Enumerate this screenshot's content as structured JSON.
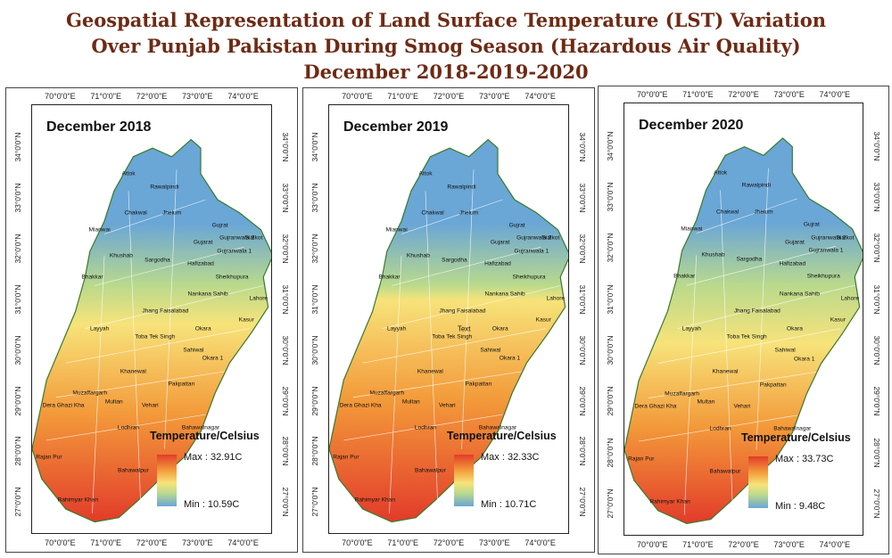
{
  "title": {
    "line1": "Geospatial Representation of Land Surface Temperature (LST) Variation",
    "line2": "Over Punjab Pakistan During Smog Season (Hazardous Air Quality)",
    "line3": "December 2018-2019-2020"
  },
  "axes": {
    "longitudes": [
      "70°0'0\"E",
      "71°0'0\"E",
      "72°0'0\"E",
      "73°0'0\"E",
      "74°0'0\"E"
    ],
    "latitudes": [
      "34°0'0\"N",
      "33°0'0\"N",
      "32°0'0\"N",
      "31°0'0\"N",
      "30°0'0\"N",
      "29°0'0\"N",
      "28°0'0\"N",
      "27°0'0\"N"
    ]
  },
  "legend": {
    "title": "Temperature/Celsius",
    "colors": {
      "max": "#e23b2a",
      "high": "#f39a3a",
      "mid": "#f7e37a",
      "low": "#b9d98d",
      "min": "#6aa6d6"
    }
  },
  "panels": [
    {
      "heading": "December 2018",
      "max_label": "Max : 32.91C",
      "min_label": "Min : 10.59C",
      "hot_share": 0.55,
      "stray_text": ""
    },
    {
      "heading": "December 2019",
      "max_label": "Max : 32.33C",
      "min_label": "Min : 10.71C",
      "hot_share": 0.8,
      "stray_text": "Text"
    },
    {
      "heading": "December 2020",
      "max_label": "Max : 33.73C",
      "min_label": "Min : 9.48C",
      "hot_share": 0.35,
      "stray_text": ""
    }
  ],
  "districts": [
    "Attok",
    "Rawalpindi",
    "Chakwal",
    "Jhelum",
    "Mianwai",
    "Gujrat",
    "Sialkot",
    "Gujarat",
    "Gujranwala 1",
    "Gujranwala 2",
    "Khushab",
    "Sargodha",
    "Hafizabad",
    "Sheikhupura",
    "Bhakkar",
    "Nankana Sahib",
    "Lahore",
    "Jhang",
    "Faisalabad",
    "Kasur",
    "Layyah",
    "Toba Tek Singh",
    "Okara",
    "Sahiwal",
    "Okara 1",
    "Khanewal",
    "Muzaffargarh",
    "Pakpattan",
    "Dera Ghazi Kha",
    "Multan",
    "Vehari",
    "Lodhran",
    "Bahawalnagar",
    "Rajan Pur",
    "Bahawalpur",
    "Rahimyar Khan"
  ]
}
